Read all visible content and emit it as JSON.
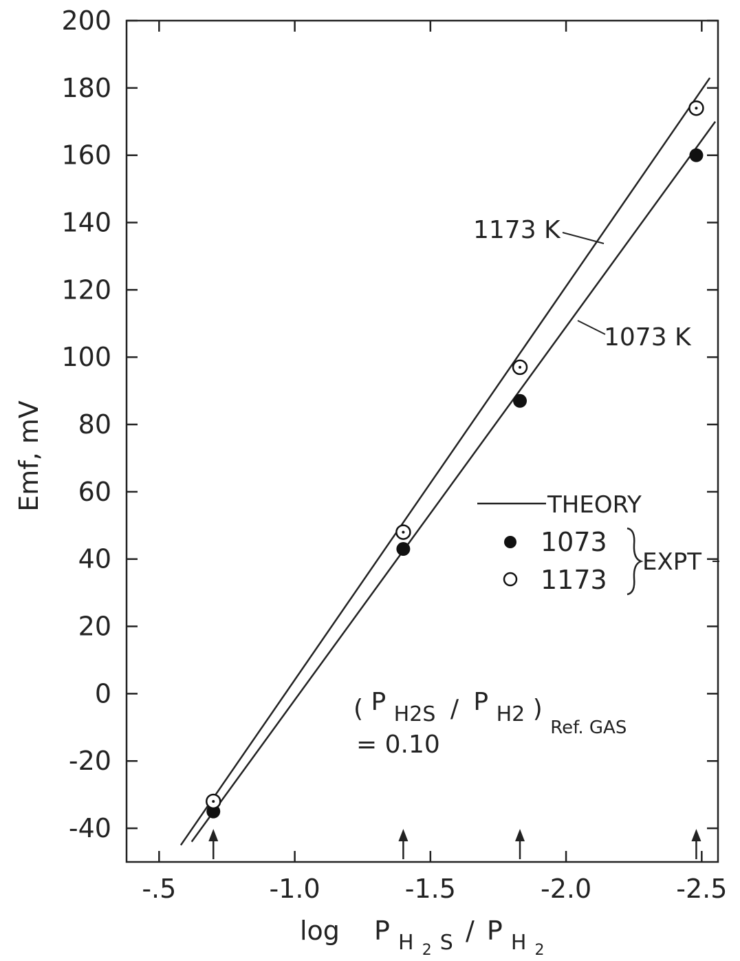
{
  "chart_data": {
    "type": "scatter",
    "xlabel": {
      "prefix": "log",
      "num_p": "P",
      "num_sub": "H",
      "num_sub_digit": "2",
      "num_sub_tail": "S",
      "slash": "/",
      "den_p": "P",
      "den_sub": "H",
      "den_sub_digit": "2"
    },
    "ylabel": "Emf, mV",
    "xlim": [
      -0.38,
      -2.56
    ],
    "ylim": [
      -50,
      200
    ],
    "xticks": [
      -0.5,
      -1.0,
      -1.5,
      -2.0,
      -2.5
    ],
    "xtick_labels": [
      "-.5",
      "-1.0",
      "-1.5",
      "-2.0",
      "-2.5"
    ],
    "yticks": [
      200,
      180,
      160,
      140,
      120,
      100,
      80,
      60,
      40,
      20,
      0,
      -20,
      -40
    ],
    "ytick_labels": [
      "200",
      "180",
      "160",
      "140",
      "120",
      "100",
      "80",
      "60",
      "40",
      "20",
      "0",
      "-20",
      "-40"
    ],
    "series": [
      {
        "name": "1073",
        "marker": "filled",
        "x": [
          -0.7,
          -1.4,
          -1.83,
          -2.48
        ],
        "y": [
          -35,
          43,
          87,
          160
        ],
        "theory_line": {
          "x": [
            -0.62,
            -2.55
          ],
          "y": [
            -44,
            170
          ]
        },
        "line_label": "1073 K"
      },
      {
        "name": "1173",
        "marker": "open",
        "x": [
          -0.7,
          -1.4,
          -1.83,
          -2.48
        ],
        "y": [
          -32,
          48,
          97,
          174
        ],
        "theory_line": {
          "x": [
            -0.58,
            -2.53
          ],
          "y": [
            -45,
            183
          ]
        },
        "line_label": "1173 K"
      }
    ],
    "arrows_at_x": [
      -0.7,
      -1.4,
      -1.83,
      -2.48
    ],
    "legend": {
      "placement": "center-right",
      "theory": "THEORY",
      "expt": "EXPT",
      "items": [
        "1073",
        "1173"
      ]
    },
    "annotation": {
      "open_paren": "(",
      "p1": "P",
      "p1_sub": "H2S",
      "slash": "/",
      "p2": "P",
      "p2_sub": "H2",
      "close_paren": ")",
      "ref": "Ref. GAS",
      "equals": "= 0.10"
    }
  }
}
